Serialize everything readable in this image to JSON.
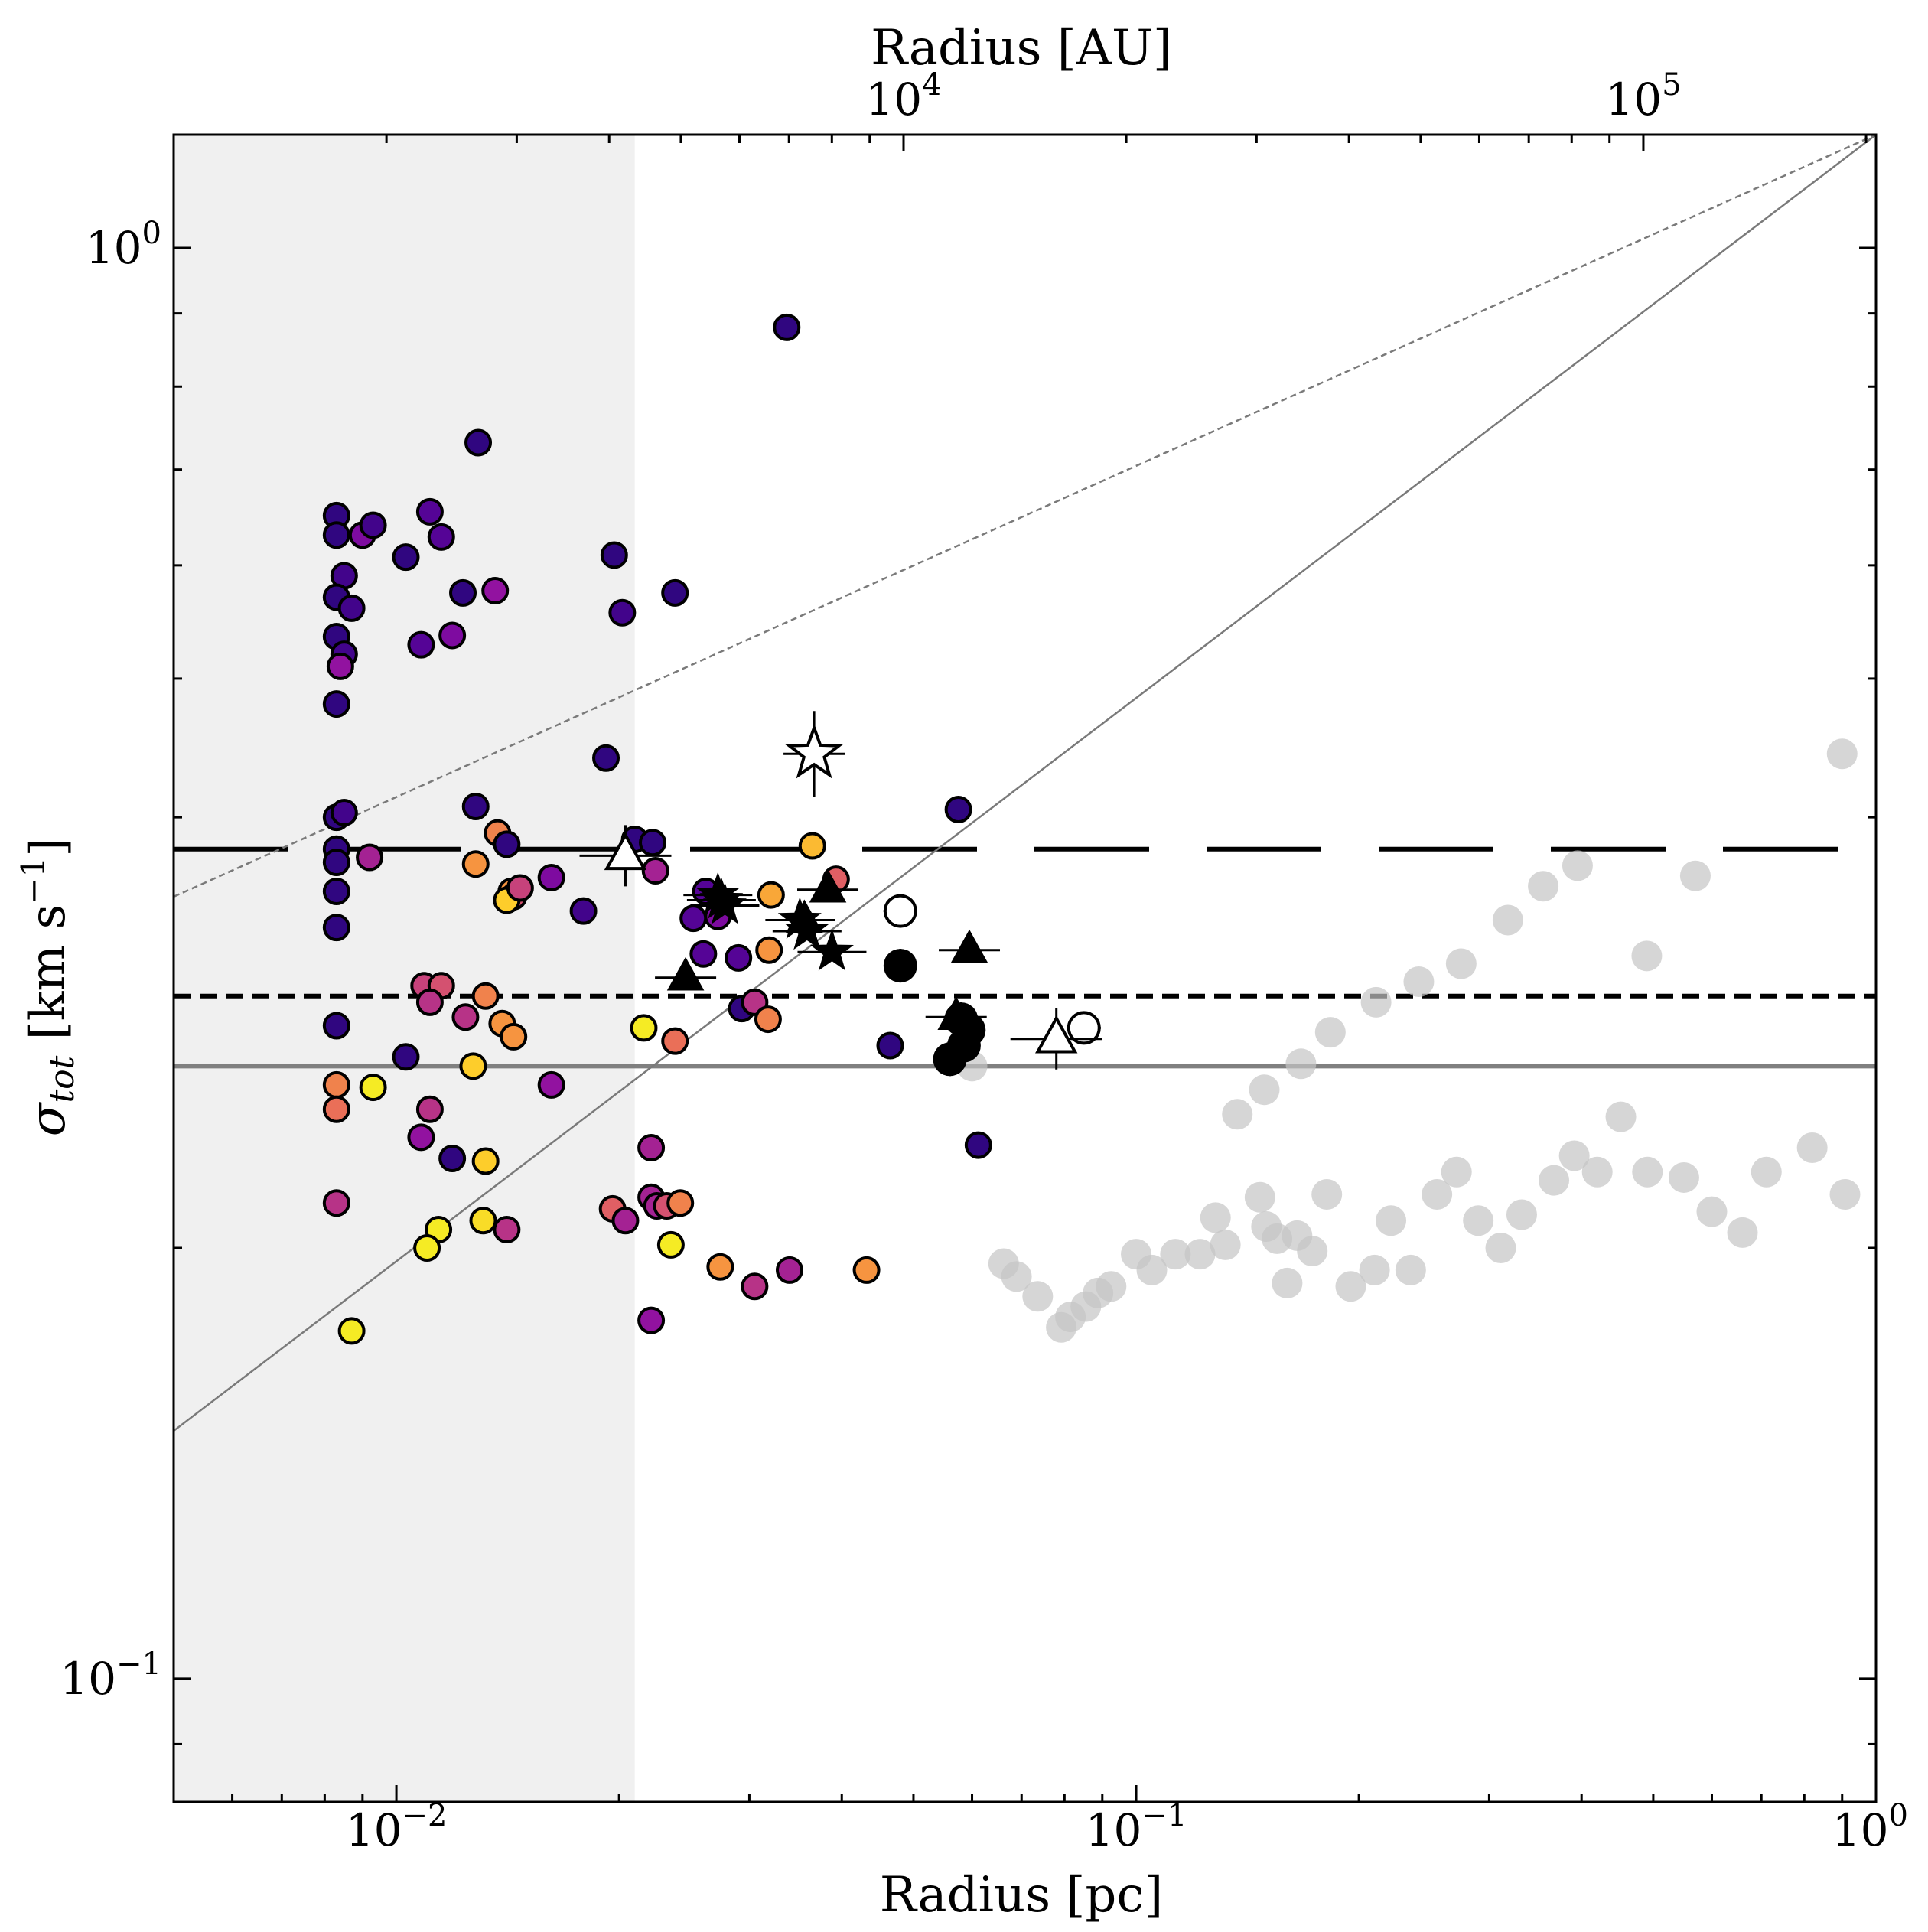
{
  "chart_data": {
    "type": "scatter",
    "xlabel": "Radius [pc]",
    "x2label": "Radius [AU]",
    "ylabel_main": "σ",
    "ylabel_sub": "tot",
    "ylabel_units": " [km s",
    "ylabel_exp": "−1",
    "ylabel_close": "]",
    "x_scale": "log",
    "y_scale": "log",
    "xlim": [
      0.005,
      1.0
    ],
    "ylim": [
      0.082,
      1.2
    ],
    "x_ticks": [
      {
        "value": 0.01,
        "base": "10",
        "exp": "−2"
      },
      {
        "value": 0.1,
        "base": "10",
        "exp": "−1"
      },
      {
        "value": 1.0,
        "base": "10",
        "exp": "0"
      }
    ],
    "x2_ticks": [
      {
        "value_au": 10000,
        "base": "10",
        "exp": "4"
      },
      {
        "value_au": 100000,
        "base": "10",
        "exp": "5"
      }
    ],
    "y_ticks": [
      {
        "value": 0.1,
        "base": "10",
        "exp": "−1"
      },
      {
        "value": 1.0,
        "base": "10",
        "exp": "0"
      }
    ],
    "shaded_region": {
      "x_max": 0.021,
      "color": "#f0f0f0"
    },
    "reference_lines": {
      "long_dashed": 0.38,
      "short_dashed": 0.3,
      "solid_gray": 0.268,
      "powerlaw_solid": [
        [
          0.005,
          0.149
        ],
        [
          1.0,
          1.2
        ]
      ],
      "powerlaw_dotted": [
        [
          0.005,
          0.352
        ],
        [
          1.0,
          1.2
        ]
      ]
    },
    "colors": {
      "gray_points": "#c4c4c4",
      "colormap": [
        "#1d0775",
        "#520395",
        "#8d0da3",
        "#c13c80",
        "#e6655f",
        "#f8993d",
        "#fdd02a",
        "#f0f921"
      ]
    },
    "series": [
      {
        "marker": "circle-colored",
        "points": [
          [
            0.0083,
            0.65,
            0.05
          ],
          [
            0.0083,
            0.63,
            0.05
          ],
          [
            0.0085,
            0.59,
            0.1
          ],
          [
            0.0083,
            0.57,
            0.05
          ],
          [
            0.0087,
            0.56,
            0.1
          ],
          [
            0.009,
            0.63,
            0.25
          ],
          [
            0.0093,
            0.64,
            0.1
          ],
          [
            0.0083,
            0.535,
            0.05
          ],
          [
            0.0085,
            0.52,
            0.1
          ],
          [
            0.0084,
            0.51,
            0.3
          ],
          [
            0.0083,
            0.48,
            0.05
          ],
          [
            0.0083,
            0.4,
            0.05
          ],
          [
            0.0085,
            0.403,
            0.1
          ],
          [
            0.0083,
            0.38,
            0.05
          ],
          [
            0.0083,
            0.372,
            0.05
          ],
          [
            0.0092,
            0.375,
            0.35
          ],
          [
            0.0083,
            0.355,
            0.05
          ],
          [
            0.0083,
            0.335,
            0.05
          ],
          [
            0.0083,
            0.286,
            0.05
          ],
          [
            0.0083,
            0.26,
            0.65
          ],
          [
            0.0083,
            0.25,
            0.6
          ],
          [
            0.0083,
            0.215,
            0.4
          ],
          [
            0.0087,
            0.175,
            0.95
          ],
          [
            0.0093,
            0.259,
            0.95
          ],
          [
            0.0103,
            0.608,
            0.05
          ],
          [
            0.0108,
            0.528,
            0.15
          ],
          [
            0.0111,
            0.654,
            0.15
          ],
          [
            0.0115,
            0.628,
            0.15
          ],
          [
            0.0119,
            0.536,
            0.25
          ],
          [
            0.0123,
            0.574,
            0.05
          ],
          [
            0.0129,
            0.731,
            0.05
          ],
          [
            0.0136,
            0.576,
            0.3
          ],
          [
            0.0128,
            0.407,
            0.05
          ],
          [
            0.0137,
            0.39,
            0.65
          ],
          [
            0.0141,
            0.383,
            0.05
          ],
          [
            0.0128,
            0.371,
            0.7
          ],
          [
            0.0143,
            0.355,
            0.7
          ],
          [
            0.0144,
            0.352,
            0.5
          ],
          [
            0.0141,
            0.35,
            0.85
          ],
          [
            0.0109,
            0.305,
            0.45
          ],
          [
            0.0115,
            0.305,
            0.5
          ],
          [
            0.0111,
            0.297,
            0.4
          ],
          [
            0.0124,
            0.29,
            0.4
          ],
          [
            0.0132,
            0.3,
            0.65
          ],
          [
            0.0139,
            0.287,
            0.7
          ],
          [
            0.0144,
            0.281,
            0.7
          ],
          [
            0.0103,
            0.272,
            0.05
          ],
          [
            0.0127,
            0.268,
            0.85
          ],
          [
            0.0162,
            0.26,
            0.3
          ],
          [
            0.0111,
            0.25,
            0.4
          ],
          [
            0.0108,
            0.239,
            0.3
          ],
          [
            0.0119,
            0.231,
            0.05
          ],
          [
            0.0132,
            0.23,
            0.85
          ],
          [
            0.0131,
            0.209,
            0.9
          ],
          [
            0.0114,
            0.206,
            0.95
          ],
          [
            0.011,
            0.2,
            0.95
          ],
          [
            0.0141,
            0.206,
            0.4
          ],
          [
            0.0162,
            0.363,
            0.25
          ],
          [
            0.0147,
            0.357,
            0.45
          ],
          [
            0.0179,
            0.344,
            0.1
          ],
          [
            0.0192,
            0.44,
            0.05
          ],
          [
            0.0197,
            0.61,
            0.05
          ],
          [
            0.0202,
            0.556,
            0.1
          ],
          [
            0.021,
            0.386,
            0.05
          ],
          [
            0.0222,
            0.384,
            0.05
          ],
          [
            0.0224,
            0.367,
            0.35
          ],
          [
            0.0238,
            0.574,
            0.05
          ],
          [
            0.0252,
            0.34,
            0.15
          ],
          [
            0.026,
            0.321,
            0.15
          ],
          [
            0.0262,
            0.355,
            0.15
          ],
          [
            0.0272,
            0.341,
            0.25
          ],
          [
            0.029,
            0.319,
            0.15
          ],
          [
            0.0293,
            0.294,
            0.05
          ],
          [
            0.0305,
            0.297,
            0.4
          ],
          [
            0.0318,
            0.289,
            0.65
          ],
          [
            0.0319,
            0.323,
            0.7
          ],
          [
            0.0321,
            0.353,
            0.75
          ],
          [
            0.0365,
            0.382,
            0.8
          ],
          [
            0.0393,
            0.362,
            0.55
          ],
          [
            0.0216,
            0.285,
            0.95
          ],
          [
            0.0238,
            0.279,
            0.6
          ],
          [
            0.0221,
            0.235,
            0.35
          ],
          [
            0.0221,
            0.217,
            0.35
          ],
          [
            0.0196,
            0.213,
            0.55
          ],
          [
            0.0204,
            0.209,
            0.35
          ],
          [
            0.0225,
            0.214,
            0.35
          ],
          [
            0.0232,
            0.214,
            0.5
          ],
          [
            0.0242,
            0.215,
            0.65
          ],
          [
            0.0235,
            0.201,
            0.95
          ],
          [
            0.0337,
            0.88,
            0.05
          ],
          [
            0.0465,
            0.277,
            0.05
          ],
          [
            0.0575,
            0.405,
            0.05
          ],
          [
            0.0612,
            0.236,
            0.05
          ],
          [
            0.0274,
            0.194,
            0.7
          ],
          [
            0.0305,
            0.188,
            0.4
          ],
          [
            0.034,
            0.193,
            0.35
          ],
          [
            0.0432,
            0.193,
            0.7
          ],
          [
            0.0221,
            0.178,
            0.3
          ]
        ]
      },
      {
        "marker": "circle-gray",
        "points": [
          [
            0.06,
            0.268
          ],
          [
            0.0662,
            0.195
          ],
          [
            0.0689,
            0.191
          ],
          [
            0.0736,
            0.185
          ],
          [
            0.0792,
            0.176
          ],
          [
            0.0815,
            0.179
          ],
          [
            0.0855,
            0.182
          ],
          [
            0.0888,
            0.186
          ],
          [
            0.0925,
            0.188
          ],
          [
            0.1,
            0.198
          ],
          [
            0.105,
            0.193
          ],
          [
            0.113,
            0.198
          ],
          [
            0.122,
            0.198
          ],
          [
            0.128,
            0.21
          ],
          [
            0.132,
            0.201
          ],
          [
            0.147,
            0.217
          ],
          [
            0.15,
            0.207
          ],
          [
            0.155,
            0.203
          ],
          [
            0.16,
            0.189
          ],
          [
            0.165,
            0.204
          ],
          [
            0.173,
            0.199
          ],
          [
            0.181,
            0.218
          ],
          [
            0.195,
            0.188
          ],
          [
            0.21,
            0.193
          ],
          [
            0.221,
            0.209
          ],
          [
            0.235,
            0.193
          ],
          [
            0.255,
            0.218
          ],
          [
            0.271,
            0.226
          ],
          [
            0.29,
            0.209
          ],
          [
            0.311,
            0.2
          ],
          [
            0.332,
            0.211
          ],
          [
            0.367,
            0.223
          ],
          [
            0.391,
            0.232
          ],
          [
            0.42,
            0.226
          ],
          [
            0.452,
            0.247
          ],
          [
            0.491,
            0.226
          ],
          [
            0.55,
            0.224
          ],
          [
            0.6,
            0.212
          ],
          [
            0.66,
            0.205
          ],
          [
            0.711,
            0.226
          ],
          [
            0.82,
            0.235
          ],
          [
            0.908,
            0.218
          ],
          [
            0.137,
            0.248
          ],
          [
            0.149,
            0.258
          ],
          [
            0.167,
            0.269
          ],
          [
            0.183,
            0.283
          ],
          [
            0.211,
            0.297
          ],
          [
            0.241,
            0.307
          ],
          [
            0.275,
            0.316
          ],
          [
            0.318,
            0.339
          ],
          [
            0.355,
            0.358
          ],
          [
            0.395,
            0.37
          ],
          [
            0.49,
            0.32
          ],
          [
            0.57,
            0.364
          ],
          [
            0.9,
            0.443
          ]
        ]
      },
      {
        "marker": "star-filled",
        "points": [
          [
            0.0272,
            0.353
          ],
          [
            0.0275,
            0.35
          ],
          [
            0.0278,
            0.347
          ],
          [
            0.0351,
            0.339
          ],
          [
            0.0359,
            0.333
          ],
          [
            0.0388,
            0.322
          ]
        ]
      },
      {
        "marker": "triangle-filled",
        "points": [
          [
            0.0246,
            0.309
          ],
          [
            0.0356,
            0.339
          ],
          [
            0.0383,
            0.356
          ],
          [
            0.0571,
            0.29
          ],
          [
            0.0595,
            0.323
          ]
        ]
      },
      {
        "marker": "circle-filled",
        "points": [
          [
            0.048,
            0.315
          ],
          [
            0.058,
            0.289
          ],
          [
            0.0594,
            0.284
          ],
          [
            0.0585,
            0.277
          ],
          [
            0.056,
            0.271
          ]
        ]
      },
      {
        "marker": "circle-open",
        "points": [
          [
            0.048,
            0.344
          ],
          [
            0.085,
            0.285
          ]
        ]
      },
      {
        "marker": "triangle-open",
        "points": [
          [
            0.0204,
            0.376
          ],
          [
            0.078,
            0.28
          ]
        ]
      },
      {
        "marker": "star-open",
        "points": [
          [
            0.0367,
            0.443
          ]
        ]
      }
    ]
  }
}
